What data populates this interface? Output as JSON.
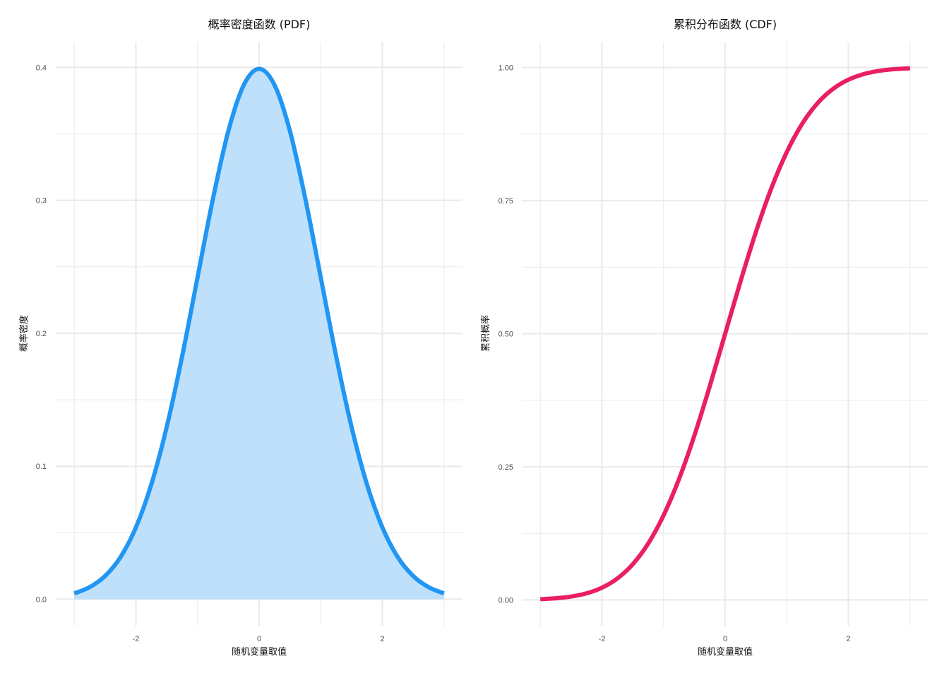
{
  "chart_data": [
    {
      "type": "area",
      "title": "概率密度函数 (PDF)",
      "xlabel": "随机变量取值",
      "ylabel": "概率密度",
      "xlim": [
        -3,
        3
      ],
      "ylim": [
        -0.0199,
        0.4188
      ],
      "x_major_ticks": [
        -2,
        0,
        2
      ],
      "x_tick_labels": [
        "-2",
        "0",
        "2"
      ],
      "y_major_ticks": [
        0,
        0.1,
        0.2,
        0.3,
        0.4
      ],
      "y_tick_labels": [
        "0.0",
        "0.1",
        "0.2",
        "0.3",
        "0.4"
      ],
      "grid": true,
      "series": [
        {
          "x": [
            -3,
            -2.75,
            -2.5,
            -2.25,
            -2,
            -1.75,
            -1.5,
            -1.25,
            -1,
            -0.75,
            -0.5,
            -0.25,
            0,
            0.25,
            0.5,
            0.75,
            1,
            1.25,
            1.5,
            1.75,
            2,
            2.25,
            2.5,
            2.75,
            3
          ],
          "y": [
            0.0044,
            0.0091,
            0.0175,
            0.0317,
            0.054,
            0.0863,
            0.1295,
            0.1826,
            0.242,
            0.3011,
            0.3521,
            0.3867,
            0.3989,
            0.3867,
            0.3521,
            0.3011,
            0.242,
            0.1826,
            0.1295,
            0.0863,
            0.054,
            0.0317,
            0.0175,
            0.0091,
            0.0044
          ],
          "color": "#2196f3",
          "fill_color": "#bbdefb"
        }
      ]
    },
    {
      "type": "line",
      "title": "累积分布函数 (CDF)",
      "xlabel": "随机变量取值",
      "ylabel": "累积概率",
      "xlim": [
        -3,
        3
      ],
      "ylim": [
        -0.0486,
        1.0473
      ],
      "x_major_ticks": [
        -2,
        0,
        2
      ],
      "x_tick_labels": [
        "-2",
        "0",
        "2"
      ],
      "y_major_ticks": [
        0,
        0.25,
        0.5,
        0.75,
        1
      ],
      "y_tick_labels": [
        "0.00",
        "0.25",
        "0.50",
        "0.75",
        "1.00"
      ],
      "grid": true,
      "series": [
        {
          "x": [
            -3,
            -2.75,
            -2.5,
            -2.25,
            -2,
            -1.75,
            -1.5,
            -1.25,
            -1,
            -0.75,
            -0.5,
            -0.25,
            0,
            0.25,
            0.5,
            0.75,
            1,
            1.25,
            1.5,
            1.75,
            2,
            2.25,
            2.5,
            2.75,
            3
          ],
          "y": [
            0.0013,
            0.003,
            0.0062,
            0.0122,
            0.0228,
            0.0401,
            0.0668,
            0.1056,
            0.1587,
            0.2266,
            0.3085,
            0.4013,
            0.5,
            0.5987,
            0.6915,
            0.7734,
            0.8413,
            0.8944,
            0.9332,
            0.9599,
            0.9772,
            0.9878,
            0.9938,
            0.997,
            0.9987
          ],
          "color": "#e91e63"
        }
      ]
    }
  ]
}
